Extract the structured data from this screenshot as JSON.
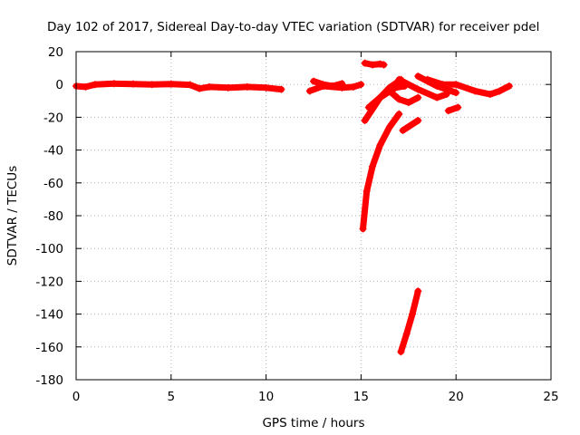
{
  "chart_data": {
    "type": "scatter",
    "title": "Day 102 of 2017, Sidereal Day-to-day VTEC variation (SDTVAR) for receiver pdel",
    "xlabel": "GPS time / hours",
    "ylabel": "SDTVAR / TECUs",
    "xlim": [
      0,
      25
    ],
    "ylim": [
      -180,
      20
    ],
    "xticks": [
      0,
      5,
      10,
      15,
      20,
      25
    ],
    "yticks": [
      20,
      0,
      -20,
      -40,
      -60,
      -80,
      -100,
      -120,
      -140,
      -160,
      -180
    ],
    "grid": true,
    "legend": "none",
    "color": "#ff0000",
    "series": [
      {
        "values": [
          [
            0.0,
            -1
          ],
          [
            0.5,
            -1.5
          ],
          [
            1.0,
            0
          ],
          [
            2.0,
            0.5
          ],
          [
            3.0,
            0.3
          ],
          [
            4.0,
            0
          ],
          [
            5.0,
            0.3
          ],
          [
            6.0,
            -0.2
          ],
          [
            6.5,
            -2.5
          ],
          [
            7.0,
            -1.5
          ],
          [
            8.0,
            -2
          ],
          [
            9.0,
            -1.5
          ],
          [
            10.0,
            -2
          ],
          [
            10.8,
            -3
          ]
        ]
      },
      {
        "values": [
          [
            12.3,
            -4
          ],
          [
            13.0,
            -1
          ],
          [
            14.0,
            -2
          ],
          [
            14.6,
            -1.5
          ],
          [
            15.0,
            0
          ]
        ]
      },
      {
        "values": [
          [
            12.5,
            2
          ],
          [
            13.0,
            0
          ],
          [
            13.5,
            -1
          ],
          [
            14.0,
            0.5
          ]
        ]
      },
      {
        "values": [
          [
            15.1,
            -88
          ],
          [
            15.3,
            -65
          ],
          [
            15.6,
            -50
          ],
          [
            16.0,
            -37
          ],
          [
            16.5,
            -26
          ],
          [
            17.0,
            -18
          ]
        ]
      },
      {
        "values": [
          [
            15.2,
            13
          ],
          [
            15.6,
            12
          ],
          [
            16.0,
            12.5
          ],
          [
            16.2,
            12
          ]
        ]
      },
      {
        "values": [
          [
            15.2,
            -22
          ],
          [
            15.6,
            -15
          ],
          [
            16.0,
            -8
          ],
          [
            16.5,
            -2
          ],
          [
            17.1,
            3
          ]
        ]
      },
      {
        "values": [
          [
            15.4,
            -14
          ],
          [
            16.0,
            -8
          ],
          [
            16.8,
            -2
          ],
          [
            17.3,
            -1
          ]
        ]
      },
      {
        "values": [
          [
            16.5,
            -4
          ],
          [
            17.0,
            -9
          ],
          [
            17.5,
            -11
          ],
          [
            18.0,
            -8
          ]
        ]
      },
      {
        "values": [
          [
            17.1,
            -163
          ],
          [
            17.4,
            -152
          ],
          [
            17.7,
            -140
          ],
          [
            18.0,
            -126
          ]
        ]
      },
      {
        "values": [
          [
            17.2,
            -28
          ],
          [
            17.6,
            -25
          ],
          [
            18.0,
            -22
          ]
        ]
      },
      {
        "values": [
          [
            17.0,
            3
          ],
          [
            18.0,
            -3
          ],
          [
            19.0,
            -8
          ],
          [
            19.5,
            -6
          ]
        ]
      },
      {
        "values": [
          [
            18.0,
            5
          ],
          [
            18.5,
            2
          ],
          [
            19.0,
            -1
          ],
          [
            19.5,
            -3
          ],
          [
            20.0,
            -5
          ]
        ]
      },
      {
        "values": [
          [
            18.5,
            3
          ],
          [
            19.3,
            0
          ],
          [
            20.0,
            0
          ],
          [
            21.0,
            -4
          ],
          [
            21.8,
            -6
          ],
          [
            22.3,
            -4
          ],
          [
            22.8,
            -1
          ]
        ]
      },
      {
        "values": [
          [
            19.6,
            -16
          ],
          [
            20.1,
            -14
          ]
        ]
      }
    ]
  }
}
